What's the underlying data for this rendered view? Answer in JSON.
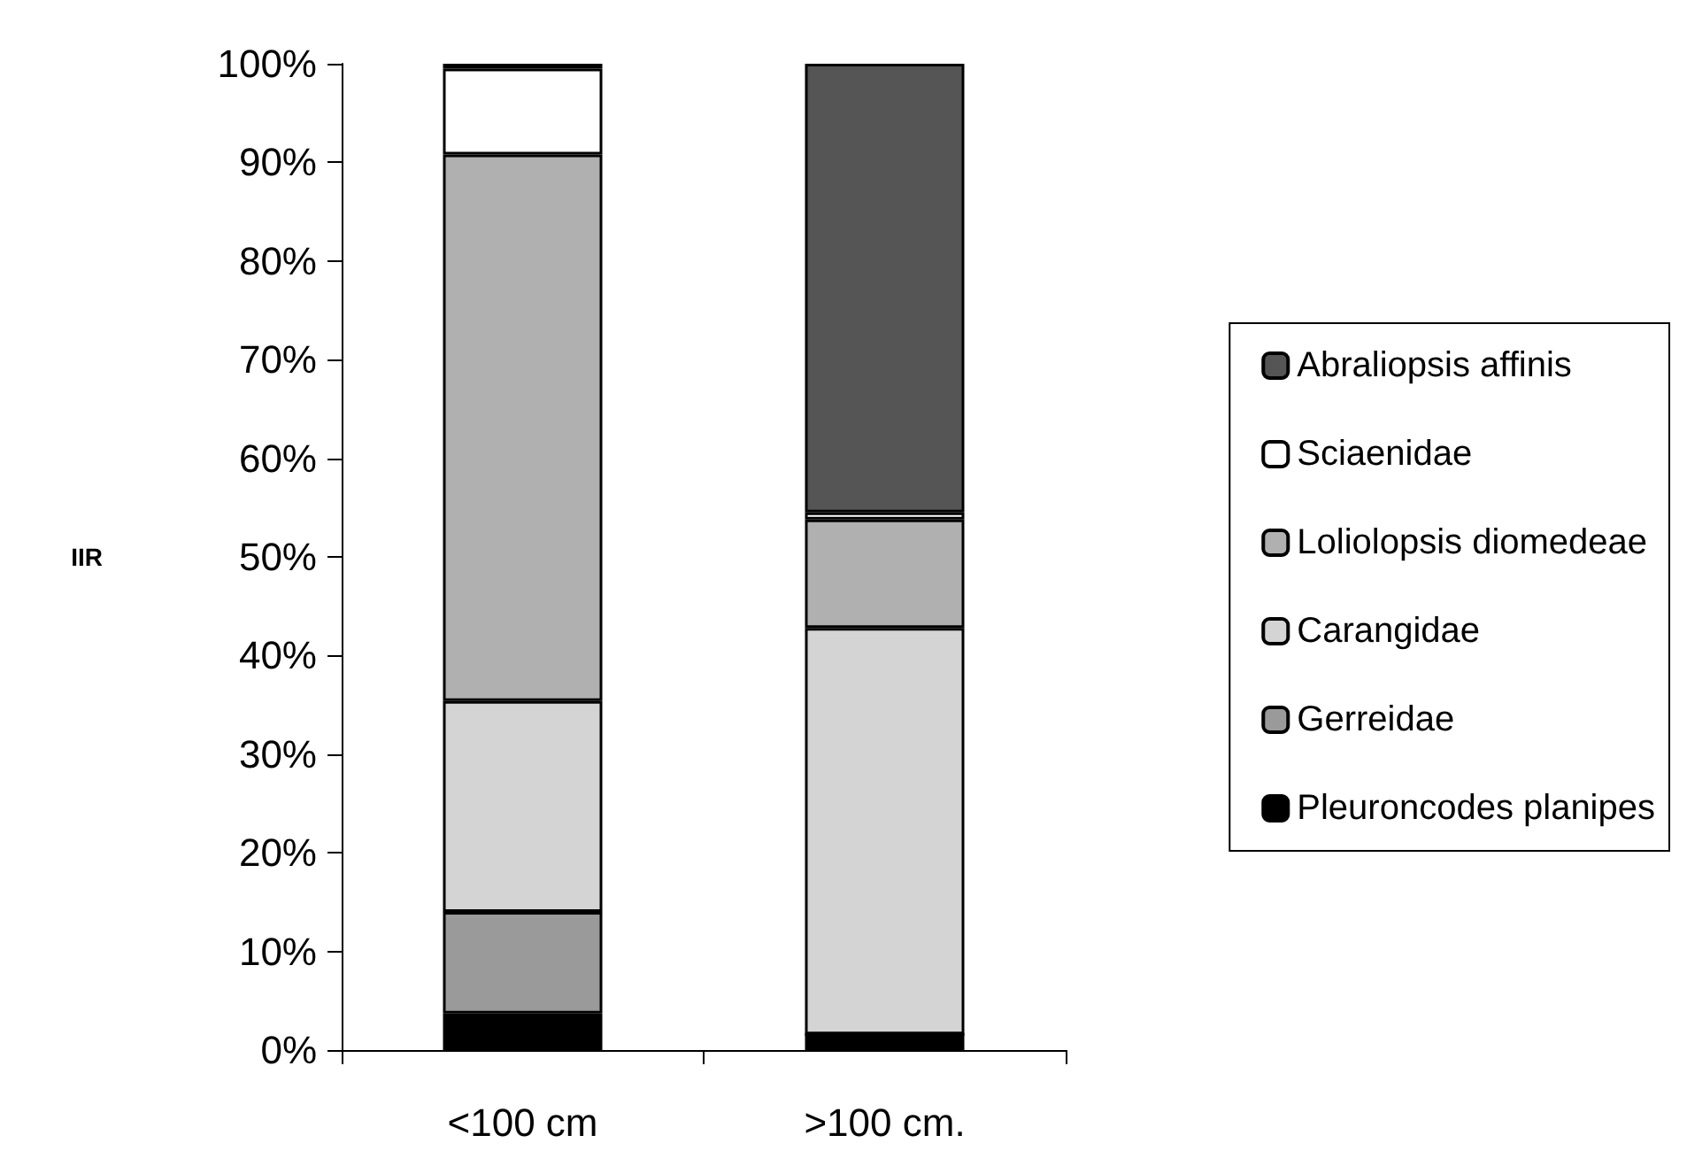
{
  "chart_data": {
    "type": "bar",
    "stacked": true,
    "ylabel": "IIR",
    "categories": [
      "<100 cm",
      ">100 cm."
    ],
    "series": [
      {
        "name": "Pleuroncodes planipes",
        "color": "#000000",
        "values": [
          3.7,
          1.6
        ]
      },
      {
        "name": "Gerreidae",
        "color": "#9a9a9a",
        "values": [
          10.3,
          0
        ]
      },
      {
        "name": "Carangidae",
        "color": "#d4d4d4",
        "values": [
          21.4,
          41.2
        ]
      },
      {
        "name": "Loliolopsis diomedeae",
        "color": "#b0b0b0",
        "values": [
          55.4,
          11.0
        ]
      },
      {
        "name": "Sciaenidae",
        "color": "#ffffff",
        "values": [
          8.7,
          0.7
        ]
      },
      {
        "name": "Abraliopsis affinis",
        "color": "#555555",
        "values": [
          0.5,
          45.5
        ]
      }
    ],
    "ylim": [
      0,
      100
    ],
    "yticks": [
      {
        "value": 0,
        "label": "0%"
      },
      {
        "value": 10,
        "label": "10%"
      },
      {
        "value": 20,
        "label": "20%"
      },
      {
        "value": 30,
        "label": "30%"
      },
      {
        "value": 40,
        "label": "40%"
      },
      {
        "value": 50,
        "label": "50%"
      },
      {
        "value": 60,
        "label": "60%"
      },
      {
        "value": 70,
        "label": "70%"
      },
      {
        "value": 80,
        "label": "80%"
      },
      {
        "value": 90,
        "label": "90%"
      },
      {
        "value": 100,
        "label": "100%"
      }
    ],
    "grid": false,
    "legend": "right"
  }
}
